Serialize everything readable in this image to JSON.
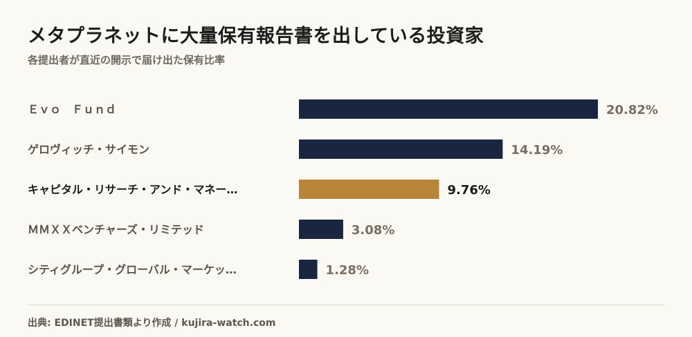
{
  "title": "メタプラネットに大量保有報告書を出している投資家",
  "subtitle": "各提出者が直近の開示で届け出た保有比率",
  "source": "出典: EDINET提出書類より作成 / kujira-watch.com",
  "colors": {
    "bar": "#1a2540",
    "highlight": "#b8843a",
    "label": "#5a534c",
    "highlight_label": "#1a1a1a",
    "value": "#7a6e62"
  },
  "chart_data": {
    "type": "bar",
    "orientation": "horizontal",
    "categories": [
      "Ｅｖｏ　Ｆｕｎｄ",
      "ゲロヴィッチ・サイモン",
      "キャピタル・リサーチ・アンド・マネー…",
      "ＭＭＸＸベンチャーズ・リミテッド",
      "シティグループ・グローバル・マーケッ…"
    ],
    "values": [
      20.82,
      14.19,
      9.76,
      3.08,
      1.28
    ],
    "value_labels": [
      "20.82%",
      "14.19%",
      "9.76%",
      "3.08%",
      "1.28%"
    ],
    "highlight_index": 2,
    "unit": "%",
    "xlim": [
      0,
      20.82
    ],
    "grid": false,
    "legend": "none"
  }
}
